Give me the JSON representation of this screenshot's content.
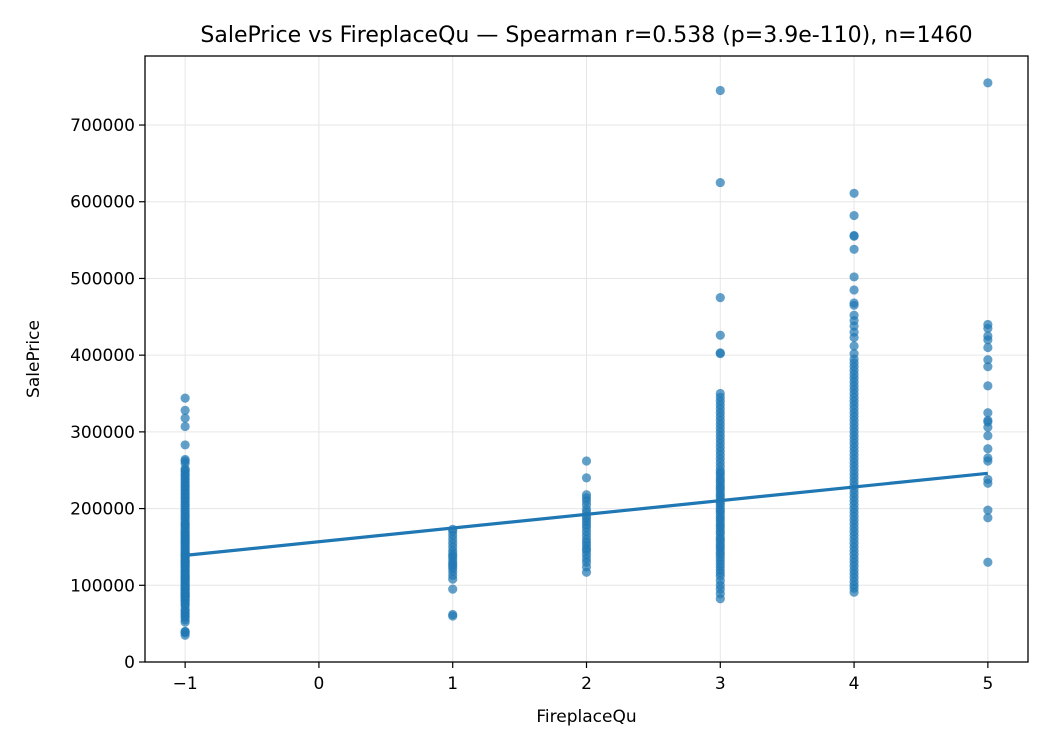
{
  "chart_data": {
    "type": "scatter",
    "title": "SalePrice vs FireplaceQu — Spearman r=0.538 (p=3.9e-110), n=1460",
    "xlabel": "FireplaceQu",
    "ylabel": "SalePrice",
    "xlim": [
      -1.3,
      5.3
    ],
    "ylim": [
      0,
      790000
    ],
    "xticks": [
      -1,
      0,
      1,
      2,
      3,
      4,
      5
    ],
    "xtick_labels": [
      "−1",
      "0",
      "1",
      "2",
      "3",
      "4",
      "5"
    ],
    "yticks": [
      0,
      100000,
      200000,
      300000,
      400000,
      500000,
      600000,
      700000
    ],
    "ytick_labels": [
      "0",
      "100000",
      "200000",
      "300000",
      "400000",
      "500000",
      "600000",
      "700000"
    ],
    "grid": true,
    "point_color": "#1f77b4",
    "line_color": "#1f77b4",
    "trendline": {
      "x": [
        -1,
        5
      ],
      "y": [
        139000,
        246000
      ]
    },
    "points": {
      "-1": [
        34900,
        37900,
        39300,
        40000,
        52000,
        55000,
        58500,
        60000,
        62383,
        64500,
        67000,
        68400,
        72500,
        75000,
        76000,
        79000,
        80000,
        82000,
        84500,
        85000,
        86000,
        87000,
        88000,
        89500,
        90000,
        91000,
        93000,
        94500,
        95000,
        97000,
        98000,
        99500,
        100000,
        102000,
        104000,
        105000,
        106500,
        108000,
        109500,
        110000,
        112000,
        113000,
        115000,
        116000,
        118000,
        119000,
        120000,
        122000,
        124000,
        125000,
        126500,
        128000,
        129500,
        130000,
        132000,
        133000,
        135000,
        136500,
        138000,
        139000,
        140000,
        142000,
        143000,
        145000,
        147000,
        149000,
        150000,
        152000,
        154000,
        155000,
        157000,
        159000,
        160000,
        162000,
        164000,
        165000,
        167000,
        169000,
        170000,
        172500,
        175000,
        177000,
        179000,
        180000,
        182000,
        185000,
        187500,
        190000,
        192000,
        195000,
        197000,
        200000,
        203000,
        205000,
        208000,
        210000,
        213000,
        215000,
        218000,
        220000,
        223000,
        225000,
        228000,
        230000,
        233000,
        235000,
        238000,
        240000,
        243000,
        245000,
        248000,
        250000,
        252000,
        259000,
        262000,
        264000,
        283000,
        307000,
        318000,
        328000,
        344000
      ],
      "1": [
        60000,
        62000,
        95000,
        108000,
        113000,
        118000,
        122000,
        125000,
        128000,
        131000,
        135000,
        138000,
        141000,
        145000,
        150000,
        155000,
        160000,
        165000,
        170000,
        173000
      ],
      "2": [
        117000,
        124000,
        130000,
        135000,
        140000,
        145000,
        148000,
        152000,
        156000,
        160000,
        165000,
        170000,
        175000,
        179000,
        183000,
        187000,
        190000,
        195000,
        199000,
        205000,
        210000,
        214000,
        218000,
        240000,
        262000
      ],
      "3": [
        82500,
        89000,
        95000,
        100000,
        106000,
        112000,
        116000,
        120000,
        124000,
        128000,
        132000,
        136000,
        140000,
        143000,
        147000,
        150000,
        153000,
        157000,
        160000,
        163000,
        167000,
        170000,
        174000,
        177000,
        180000,
        184000,
        187000,
        190000,
        194000,
        197000,
        200000,
        204000,
        207000,
        210000,
        214000,
        217000,
        220000,
        224000,
        227000,
        230000,
        234000,
        237000,
        240000,
        244000,
        247000,
        250000,
        255000,
        260000,
        265000,
        270000,
        275000,
        280000,
        285000,
        290000,
        295000,
        300000,
        305000,
        310000,
        315000,
        320000,
        325000,
        330000,
        335000,
        340000,
        345000,
        350000,
        402000,
        403000,
        426000,
        475000,
        625000,
        745000
      ],
      "4": [
        91000,
        96000,
        100000,
        105000,
        110000,
        115000,
        120000,
        125000,
        130000,
        135000,
        140000,
        145000,
        150000,
        155000,
        160000,
        165000,
        170000,
        175000,
        180000,
        185000,
        190000,
        195000,
        200000,
        205000,
        210000,
        215000,
        220000,
        225000,
        230000,
        235000,
        240000,
        245000,
        250000,
        255000,
        260000,
        265000,
        270000,
        275000,
        280000,
        285000,
        290000,
        295000,
        300000,
        305000,
        310000,
        315000,
        320000,
        325000,
        330000,
        335000,
        340000,
        345000,
        350000,
        355000,
        360000,
        365000,
        370000,
        375000,
        380000,
        385000,
        390000,
        395000,
        402000,
        412000,
        423000,
        430000,
        438000,
        445000,
        452000,
        465000,
        468000,
        485000,
        502000,
        538000,
        555000,
        556000,
        582000,
        611000
      ],
      "5": [
        130000,
        188000,
        198000,
        233000,
        238000,
        262000,
        266000,
        278000,
        295000,
        306000,
        313000,
        315000,
        325000,
        360000,
        385000,
        394000,
        410000,
        420000,
        425000,
        435000,
        440000,
        755000
      ]
    }
  }
}
